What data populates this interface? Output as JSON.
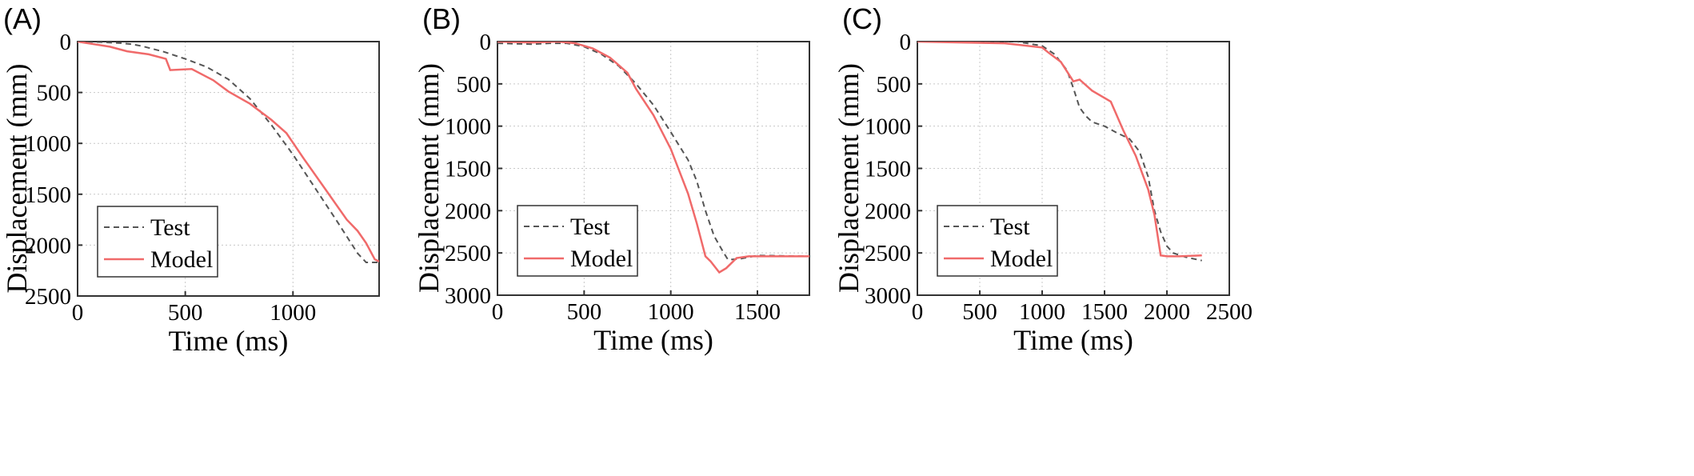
{
  "chart_data": [
    {
      "type": "line",
      "panel_label": "(A)",
      "xlabel": "Time (ms)",
      "ylabel": "Displacement (mm)",
      "xlim": [
        0,
        1400
      ],
      "ylim": [
        0,
        2500
      ],
      "y_inverted": true,
      "xticks": [
        0,
        500,
        1000
      ],
      "yticks": [
        0,
        500,
        1000,
        1500,
        2000,
        2500
      ],
      "grid": true,
      "legend_position": "bottom-left",
      "series": [
        {
          "name": "Test",
          "style": "dashed",
          "color": "#555555",
          "x": [
            0,
            100,
            200,
            250,
            300,
            400,
            500,
            600,
            700,
            800,
            900,
            1000,
            1100,
            1200,
            1300,
            1340,
            1400
          ],
          "y": [
            0,
            5,
            15,
            25,
            45,
            100,
            170,
            250,
            370,
            560,
            820,
            1110,
            1430,
            1750,
            2080,
            2170,
            2170
          ]
        },
        {
          "name": "Model",
          "style": "solid",
          "color": "#f06a6a",
          "x": [
            0,
            150,
            230,
            330,
            410,
            430,
            530,
            630,
            700,
            800,
            900,
            970,
            1050,
            1150,
            1250,
            1300,
            1340,
            1380,
            1400
          ],
          "y": [
            0,
            50,
            95,
            125,
            170,
            280,
            270,
            380,
            490,
            610,
            770,
            900,
            1150,
            1450,
            1750,
            1860,
            1980,
            2140,
            2160
          ]
        }
      ]
    },
    {
      "type": "line",
      "panel_label": "(B)",
      "xlabel": "Time (ms)",
      "ylabel": "Displacement (mm)",
      "xlim": [
        0,
        1800
      ],
      "ylim": [
        0,
        3000
      ],
      "y_inverted": true,
      "xticks": [
        0,
        500,
        1000,
        1500
      ],
      "yticks": [
        0,
        500,
        1000,
        1500,
        2000,
        2500,
        3000
      ],
      "grid": true,
      "legend_position": "bottom-left",
      "series": [
        {
          "name": "Test",
          "style": "dashed",
          "color": "#555555",
          "x": [
            0,
            200,
            300,
            400,
            500,
            600,
            700,
            800,
            900,
            1000,
            1100,
            1150,
            1200,
            1250,
            1300,
            1330,
            1400,
            1500,
            1800
          ],
          "y": [
            20,
            30,
            20,
            20,
            60,
            150,
            290,
            500,
            750,
            1070,
            1400,
            1650,
            2000,
            2300,
            2480,
            2580,
            2570,
            2530,
            2540
          ]
        },
        {
          "name": "Model",
          "style": "solid",
          "color": "#f06a6a",
          "x": [
            0,
            200,
            350,
            450,
            550,
            650,
            700,
            750,
            800,
            900,
            1000,
            1100,
            1150,
            1200,
            1230,
            1280,
            1320,
            1380,
            1450,
            1800
          ],
          "y": [
            0,
            10,
            0,
            20,
            80,
            190,
            280,
            370,
            560,
            870,
            1270,
            1800,
            2150,
            2540,
            2600,
            2730,
            2680,
            2560,
            2540,
            2540
          ]
        }
      ]
    },
    {
      "type": "line",
      "panel_label": "(C)",
      "xlabel": "Time (ms)",
      "ylabel": "Displacement (mm)",
      "xlim": [
        0,
        2500
      ],
      "ylim": [
        0,
        3000
      ],
      "y_inverted": true,
      "xticks": [
        0,
        500,
        1000,
        1500,
        2000,
        2500
      ],
      "yticks": [
        0,
        500,
        1000,
        1500,
        2000,
        2500,
        3000
      ],
      "grid": true,
      "legend_position": "bottom-left",
      "series": [
        {
          "name": "Test",
          "style": "dashed",
          "color": "#555555",
          "x": [
            0,
            800,
            1000,
            1100,
            1200,
            1250,
            1300,
            1350,
            1400,
            1500,
            1600,
            1700,
            1780,
            1850,
            1900,
            1950,
            2000,
            2050,
            2150,
            2280
          ],
          "y": [
            0,
            0,
            50,
            150,
            340,
            550,
            780,
            880,
            950,
            1000,
            1080,
            1150,
            1300,
            1600,
            2000,
            2250,
            2420,
            2500,
            2550,
            2590
          ]
        },
        {
          "name": "Model",
          "style": "solid",
          "color": "#f06a6a",
          "x": [
            0,
            700,
            1000,
            1050,
            1150,
            1250,
            1300,
            1400,
            1550,
            1650,
            1750,
            1850,
            1900,
            1950,
            2000,
            2100,
            2280
          ],
          "y": [
            0,
            20,
            70,
            130,
            240,
            470,
            450,
            580,
            710,
            1050,
            1350,
            1750,
            2050,
            2530,
            2540,
            2540,
            2530
          ]
        }
      ]
    }
  ]
}
